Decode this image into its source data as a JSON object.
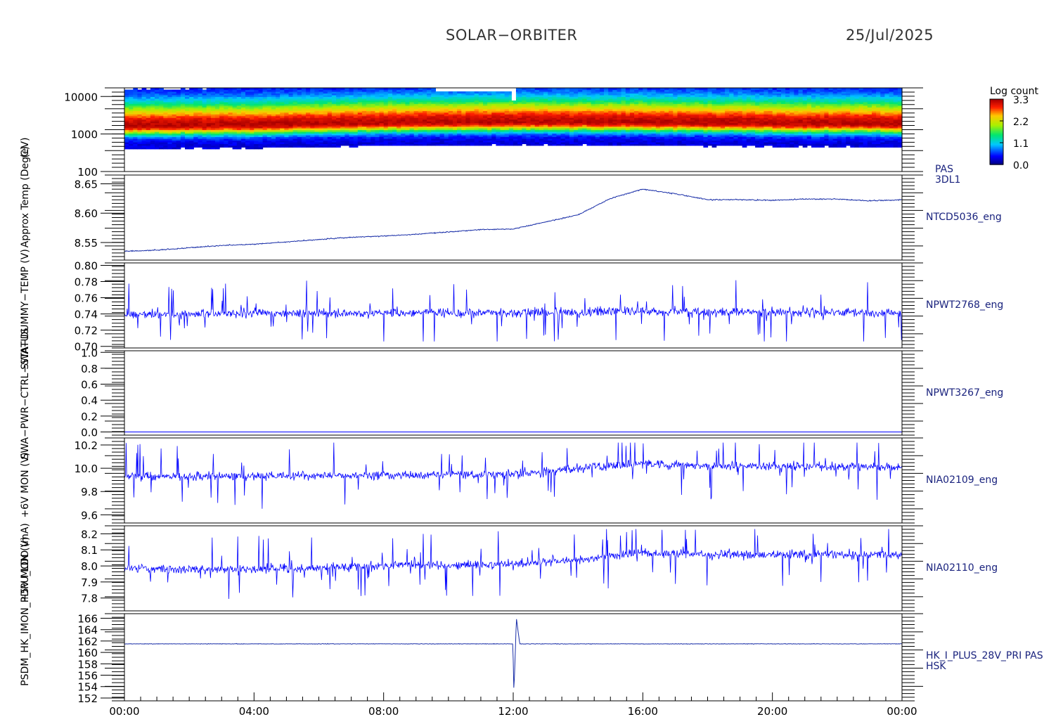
{
  "header": {
    "title": "SOLAR−ORBITER",
    "date": "25/Jul/2025"
  },
  "colorbar": {
    "label": "Log count",
    "ticks": [
      "3.3",
      "2.2",
      "1.1",
      "0.0"
    ]
  },
  "colors": {
    "trace": "#0000ff",
    "axis": "#000000",
    "label": "#1a237e",
    "trace_dark": "#1a2fa8"
  },
  "x_axis": {
    "ticks": [
      "00:00",
      "04:00",
      "08:00",
      "12:00",
      "16:00",
      "20:00",
      "00:00"
    ]
  },
  "chart_data": [
    {
      "type": "heatmap",
      "ylabel": "(eV)",
      "y_scale": "log",
      "ylim": [
        100,
        17000
      ],
      "yticks": [
        "10000",
        "1000",
        "100"
      ],
      "colorbar_range": [
        0.0,
        3.3
      ],
      "right_labels": [
        "PAS",
        "3DL1"
      ],
      "peak_energy_ev": [
        [
          0,
          1700
        ],
        [
          4,
          1750
        ],
        [
          8,
          2050
        ],
        [
          12,
          2150
        ],
        [
          16,
          2100
        ],
        [
          20,
          1950
        ],
        [
          24,
          1900
        ]
      ],
      "data_gap_hours": [
        9.65,
        12.0
      ]
    },
    {
      "type": "line",
      "ylabel": "Approx Temp (DegC)",
      "ylim": [
        8.52,
        8.665
      ],
      "yticks": [
        "8.65",
        "8.60",
        "8.55"
      ],
      "right_labels": [
        "NTCD5036_eng"
      ],
      "x": [
        0,
        1,
        2,
        3,
        4,
        5,
        6,
        7,
        8,
        9,
        10,
        11,
        12,
        13,
        14,
        15,
        16,
        17,
        18,
        19,
        20,
        21,
        22,
        23,
        24
      ],
      "values": [
        8.535,
        8.537,
        8.541,
        8.545,
        8.547,
        8.551,
        8.555,
        8.559,
        8.561,
        8.564,
        8.568,
        8.572,
        8.573,
        8.585,
        8.597,
        8.625,
        8.641,
        8.633,
        8.623,
        8.623,
        8.622,
        8.624,
        8.624,
        8.621,
        8.623
      ]
    },
    {
      "type": "line",
      "ylabel": "SWA−DUMMY−TEMP (V)",
      "ylim": [
        0.698,
        0.803
      ],
      "yticks": [
        "0.80",
        "0.78",
        "0.76",
        "0.74",
        "0.72",
        "0.70"
      ],
      "right_labels": [
        "NPWT2768_eng"
      ],
      "x": [
        0,
        4,
        8,
        12,
        16,
        20,
        24
      ],
      "values": [
        0.739,
        0.741,
        0.741,
        0.742,
        0.743,
        0.742,
        0.741
      ],
      "noise_range": [
        0.706,
        0.796
      ]
    },
    {
      "type": "line",
      "ylabel": "SWA−PWR−CTRL−STATUS",
      "ylim": [
        -0.04,
        1.02
      ],
      "yticks": [
        "1.0",
        "0.8",
        "0.6",
        "0.4",
        "0.2",
        "0.0"
      ],
      "right_labels": [
        "NPWT3267_eng"
      ],
      "x": [
        0,
        24
      ],
      "values": [
        0.0,
        0.0
      ]
    },
    {
      "type": "line",
      "ylabel": "+6V MON (V)",
      "ylim": [
        9.53,
        10.26
      ],
      "yticks": [
        "10.2",
        "10.0",
        "9.8",
        "9.6"
      ],
      "right_labels": [
        "NIA02109_eng"
      ],
      "x": [
        0,
        4,
        8,
        12,
        14,
        16,
        18,
        20,
        24
      ],
      "values": [
        9.93,
        9.93,
        9.94,
        9.95,
        10.0,
        10.04,
        10.02,
        10.02,
        10.01
      ],
      "noise_range": [
        9.58,
        10.22
      ]
    },
    {
      "type": "line",
      "ylabel": "+5V MON (V)",
      "ylim": [
        7.72,
        8.25
      ],
      "yticks": [
        "8.2",
        "8.1",
        "8.0",
        "7.9",
        "7.8"
      ],
      "right_labels": [
        "NIA02110_eng"
      ],
      "x": [
        0,
        4,
        8,
        12,
        14,
        16,
        18,
        20,
        24
      ],
      "values": [
        7.98,
        7.98,
        8.0,
        8.01,
        8.04,
        8.08,
        8.07,
        8.07,
        8.07
      ],
      "noise_range": [
        7.77,
        8.23
      ]
    },
    {
      "type": "line",
      "ylabel": "PSDM_HK_IMON_PDPU_LDO (mA)",
      "ylim": [
        151.5,
        166.8
      ],
      "yticks": [
        "166",
        "164",
        "162",
        "160",
        "158",
        "156",
        "154",
        "152"
      ],
      "right_labels": [
        "HK_I_PLUS_28V_PRI PAS",
        "HSK"
      ],
      "x": [
        0,
        11.99,
        12.02,
        12.1,
        12.2,
        24
      ],
      "values": [
        161.5,
        161.5,
        153.0,
        166.0,
        161.5,
        161.5
      ]
    }
  ]
}
